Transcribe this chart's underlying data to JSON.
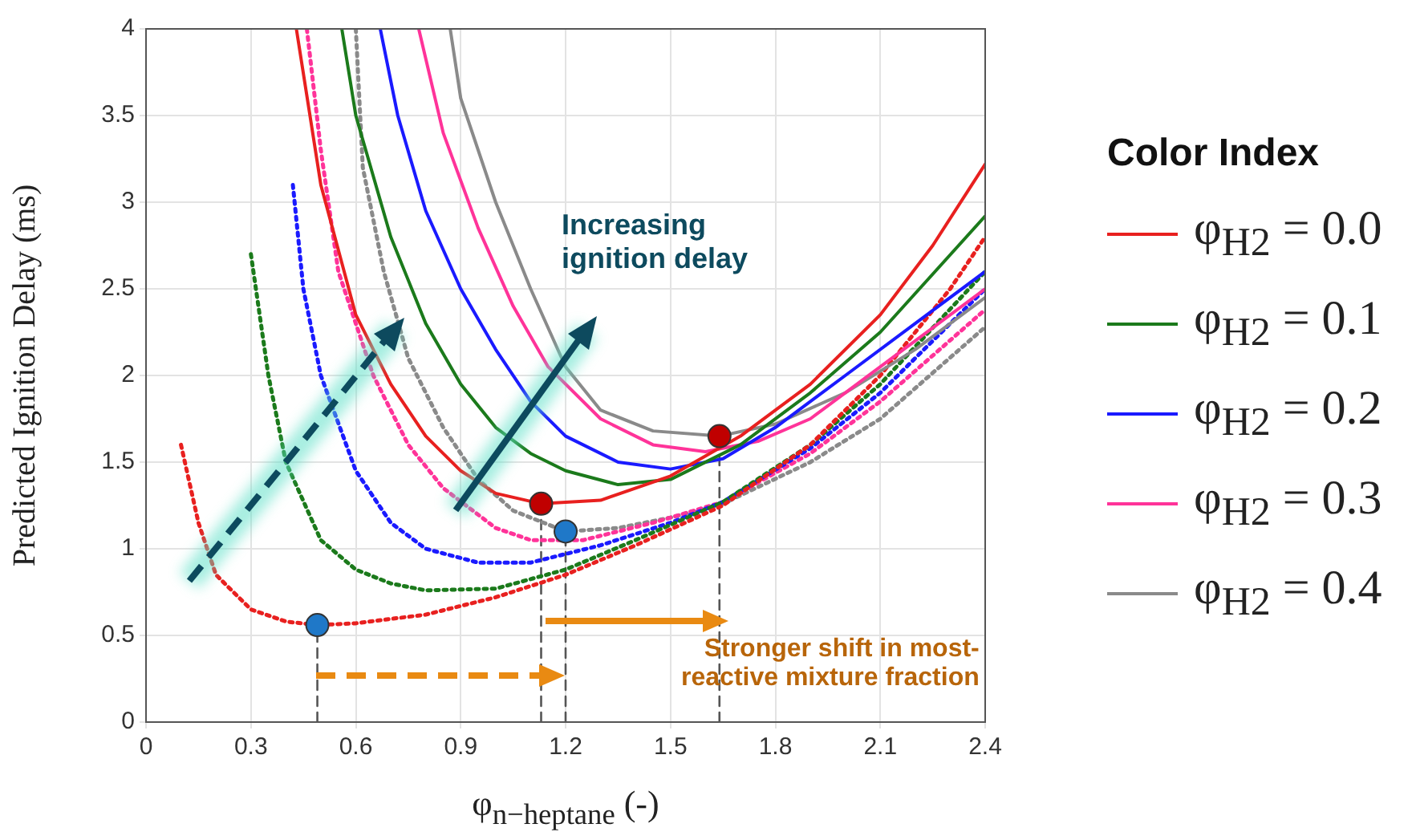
{
  "chart_data": {
    "type": "line",
    "ylabel": "Predicted Ignition Delay (ms)",
    "xlabel": "φ$_{n−heptane}$ (-)",
    "legend_title": "Color Index",
    "legend": "right",
    "grid": true,
    "marker": "none",
    "xlim": [
      0,
      2.4
    ],
    "xticks": [
      0,
      0.3,
      0.6,
      0.9,
      1.2,
      1.5,
      1.8,
      2.1,
      2.4
    ],
    "ylim": [
      0,
      4
    ],
    "yticks": [
      0,
      0.5,
      1,
      1.5,
      2,
      2.5,
      3,
      3.5,
      4
    ],
    "annotations": [
      "Increasing ignition delay",
      {
        "text": "Stronger shift in most-reactive mixture fraction",
        "x": 1.64,
        "y": 0.35
      }
    ],
    "series": [
      {
        "name": "φ$_{H2}$ = 0.0",
        "color": "#e8201f",
        "line_style": "solid",
        "x": [
          0.43,
          0.5,
          0.6,
          0.7,
          0.8,
          0.9,
          1.0,
          1.13,
          1.3,
          1.5,
          1.7,
          1.9,
          2.1,
          2.25,
          2.4
        ],
        "values": [
          4.0,
          3.1,
          2.35,
          1.95,
          1.65,
          1.45,
          1.32,
          1.26,
          1.28,
          1.42,
          1.65,
          1.95,
          2.35,
          2.75,
          3.22
        ]
      },
      {
        "name": "φ$_{H2}$ = 0.1",
        "color": "#1b7a1b",
        "line_style": "solid",
        "x": [
          0.56,
          0.6,
          0.7,
          0.8,
          0.9,
          1.0,
          1.1,
          1.2,
          1.35,
          1.5,
          1.7,
          1.9,
          2.1,
          2.4
        ],
        "values": [
          4.0,
          3.5,
          2.8,
          2.3,
          1.95,
          1.7,
          1.55,
          1.45,
          1.37,
          1.4,
          1.6,
          1.9,
          2.25,
          2.92
        ]
      },
      {
        "name": "φ$_{H2}$ = 0.2",
        "color": "#1a1aff",
        "line_style": "solid",
        "x": [
          0.67,
          0.72,
          0.8,
          0.9,
          1.0,
          1.1,
          1.2,
          1.35,
          1.5,
          1.65,
          1.8,
          2.0,
          2.2,
          2.4
        ],
        "values": [
          4.0,
          3.5,
          2.95,
          2.5,
          2.15,
          1.85,
          1.65,
          1.5,
          1.46,
          1.52,
          1.7,
          2.0,
          2.3,
          2.6
        ]
      },
      {
        "name": "φ$_{H2}$ = 0.3",
        "color": "#ff3399",
        "line_style": "solid",
        "x": [
          0.78,
          0.85,
          0.95,
          1.05,
          1.15,
          1.3,
          1.45,
          1.6,
          1.75,
          1.9,
          2.1,
          2.4
        ],
        "values": [
          4.0,
          3.4,
          2.85,
          2.4,
          2.05,
          1.75,
          1.6,
          1.56,
          1.62,
          1.75,
          2.05,
          2.5
        ]
      },
      {
        "name": "φ$_{H2}$ = 0.4",
        "color": "#8a8a8a",
        "line_style": "solid",
        "x": [
          0.87,
          0.9,
          1.0,
          1.1,
          1.2,
          1.3,
          1.45,
          1.64,
          1.8,
          2.0,
          2.2,
          2.4
        ],
        "values": [
          4.0,
          3.6,
          3.0,
          2.5,
          2.05,
          1.8,
          1.68,
          1.65,
          1.72,
          1.9,
          2.15,
          2.45
        ]
      },
      {
        "color": "#e8201f",
        "line_style": "dotted",
        "x": [
          0.1,
          0.15,
          0.2,
          0.3,
          0.4,
          0.49,
          0.6,
          0.8,
          1.0,
          1.2,
          1.4,
          1.65,
          1.9,
          2.1,
          2.3,
          2.4
        ],
        "values": [
          1.6,
          1.15,
          0.85,
          0.65,
          0.58,
          0.56,
          0.57,
          0.62,
          0.72,
          0.85,
          1.02,
          1.25,
          1.6,
          2.0,
          2.5,
          2.8
        ]
      },
      {
        "color": "#1b7a1b",
        "line_style": "dotted",
        "x": [
          0.3,
          0.35,
          0.4,
          0.5,
          0.6,
          0.7,
          0.8,
          1.0,
          1.2,
          1.4,
          1.65,
          1.9,
          2.1,
          2.4
        ],
        "values": [
          2.7,
          2.0,
          1.5,
          1.05,
          0.88,
          0.8,
          0.76,
          0.77,
          0.88,
          1.05,
          1.27,
          1.6,
          1.95,
          2.6
        ]
      },
      {
        "color": "#1a1aff",
        "line_style": "dotted",
        "x": [
          0.42,
          0.45,
          0.5,
          0.6,
          0.7,
          0.8,
          0.95,
          1.1,
          1.3,
          1.5,
          1.65,
          1.9,
          2.1,
          2.4
        ],
        "values": [
          3.1,
          2.5,
          2.0,
          1.45,
          1.15,
          1.0,
          0.92,
          0.92,
          1.02,
          1.15,
          1.27,
          1.58,
          1.9,
          2.5
        ]
      },
      {
        "color": "#ff3399",
        "line_style": "dotted",
        "x": [
          0.46,
          0.5,
          0.55,
          0.65,
          0.75,
          0.85,
          1.0,
          1.1,
          1.25,
          1.45,
          1.65,
          1.9,
          2.1,
          2.4
        ],
        "values": [
          4.0,
          3.3,
          2.6,
          2.0,
          1.6,
          1.35,
          1.12,
          1.05,
          1.05,
          1.15,
          1.27,
          1.55,
          1.85,
          2.38
        ]
      },
      {
        "color": "#8a8a8a",
        "line_style": "dotted",
        "x": [
          0.6,
          0.62,
          0.68,
          0.75,
          0.85,
          0.95,
          1.05,
          1.2,
          1.35,
          1.5,
          1.65,
          1.9,
          2.1,
          2.4
        ],
        "values": [
          4.0,
          3.2,
          2.6,
          2.1,
          1.7,
          1.4,
          1.22,
          1.1,
          1.12,
          1.18,
          1.26,
          1.5,
          1.75,
          2.28
        ]
      },
      {
        "color": "#555555",
        "line_style": "dashed",
        "x": [
          0.49,
          0.49
        ],
        "values": [
          0,
          0.56
        ]
      },
      {
        "color": "#555555",
        "line_style": "dashed",
        "x": [
          1.13,
          1.13
        ],
        "values": [
          0,
          1.26
        ]
      },
      {
        "color": "#555555",
        "line_style": "dashed",
        "x": [
          1.2,
          1.2
        ],
        "values": [
          0,
          1.1
        ]
      },
      {
        "color": "#555555",
        "line_style": "dashed",
        "x": [
          1.64,
          1.64
        ],
        "values": [
          0,
          1.65
        ]
      },
      {
        "type": "scatter",
        "marker": "circle",
        "color": "#c00000",
        "x": [
          1.13,
          1.64
        ],
        "values": [
          1.26,
          1.65
        ]
      },
      {
        "type": "scatter",
        "marker": "circle",
        "color": "#1f78c8",
        "x": [
          0.49,
          1.2
        ],
        "values": [
          0.56,
          1.1
        ]
      }
    ]
  }
}
